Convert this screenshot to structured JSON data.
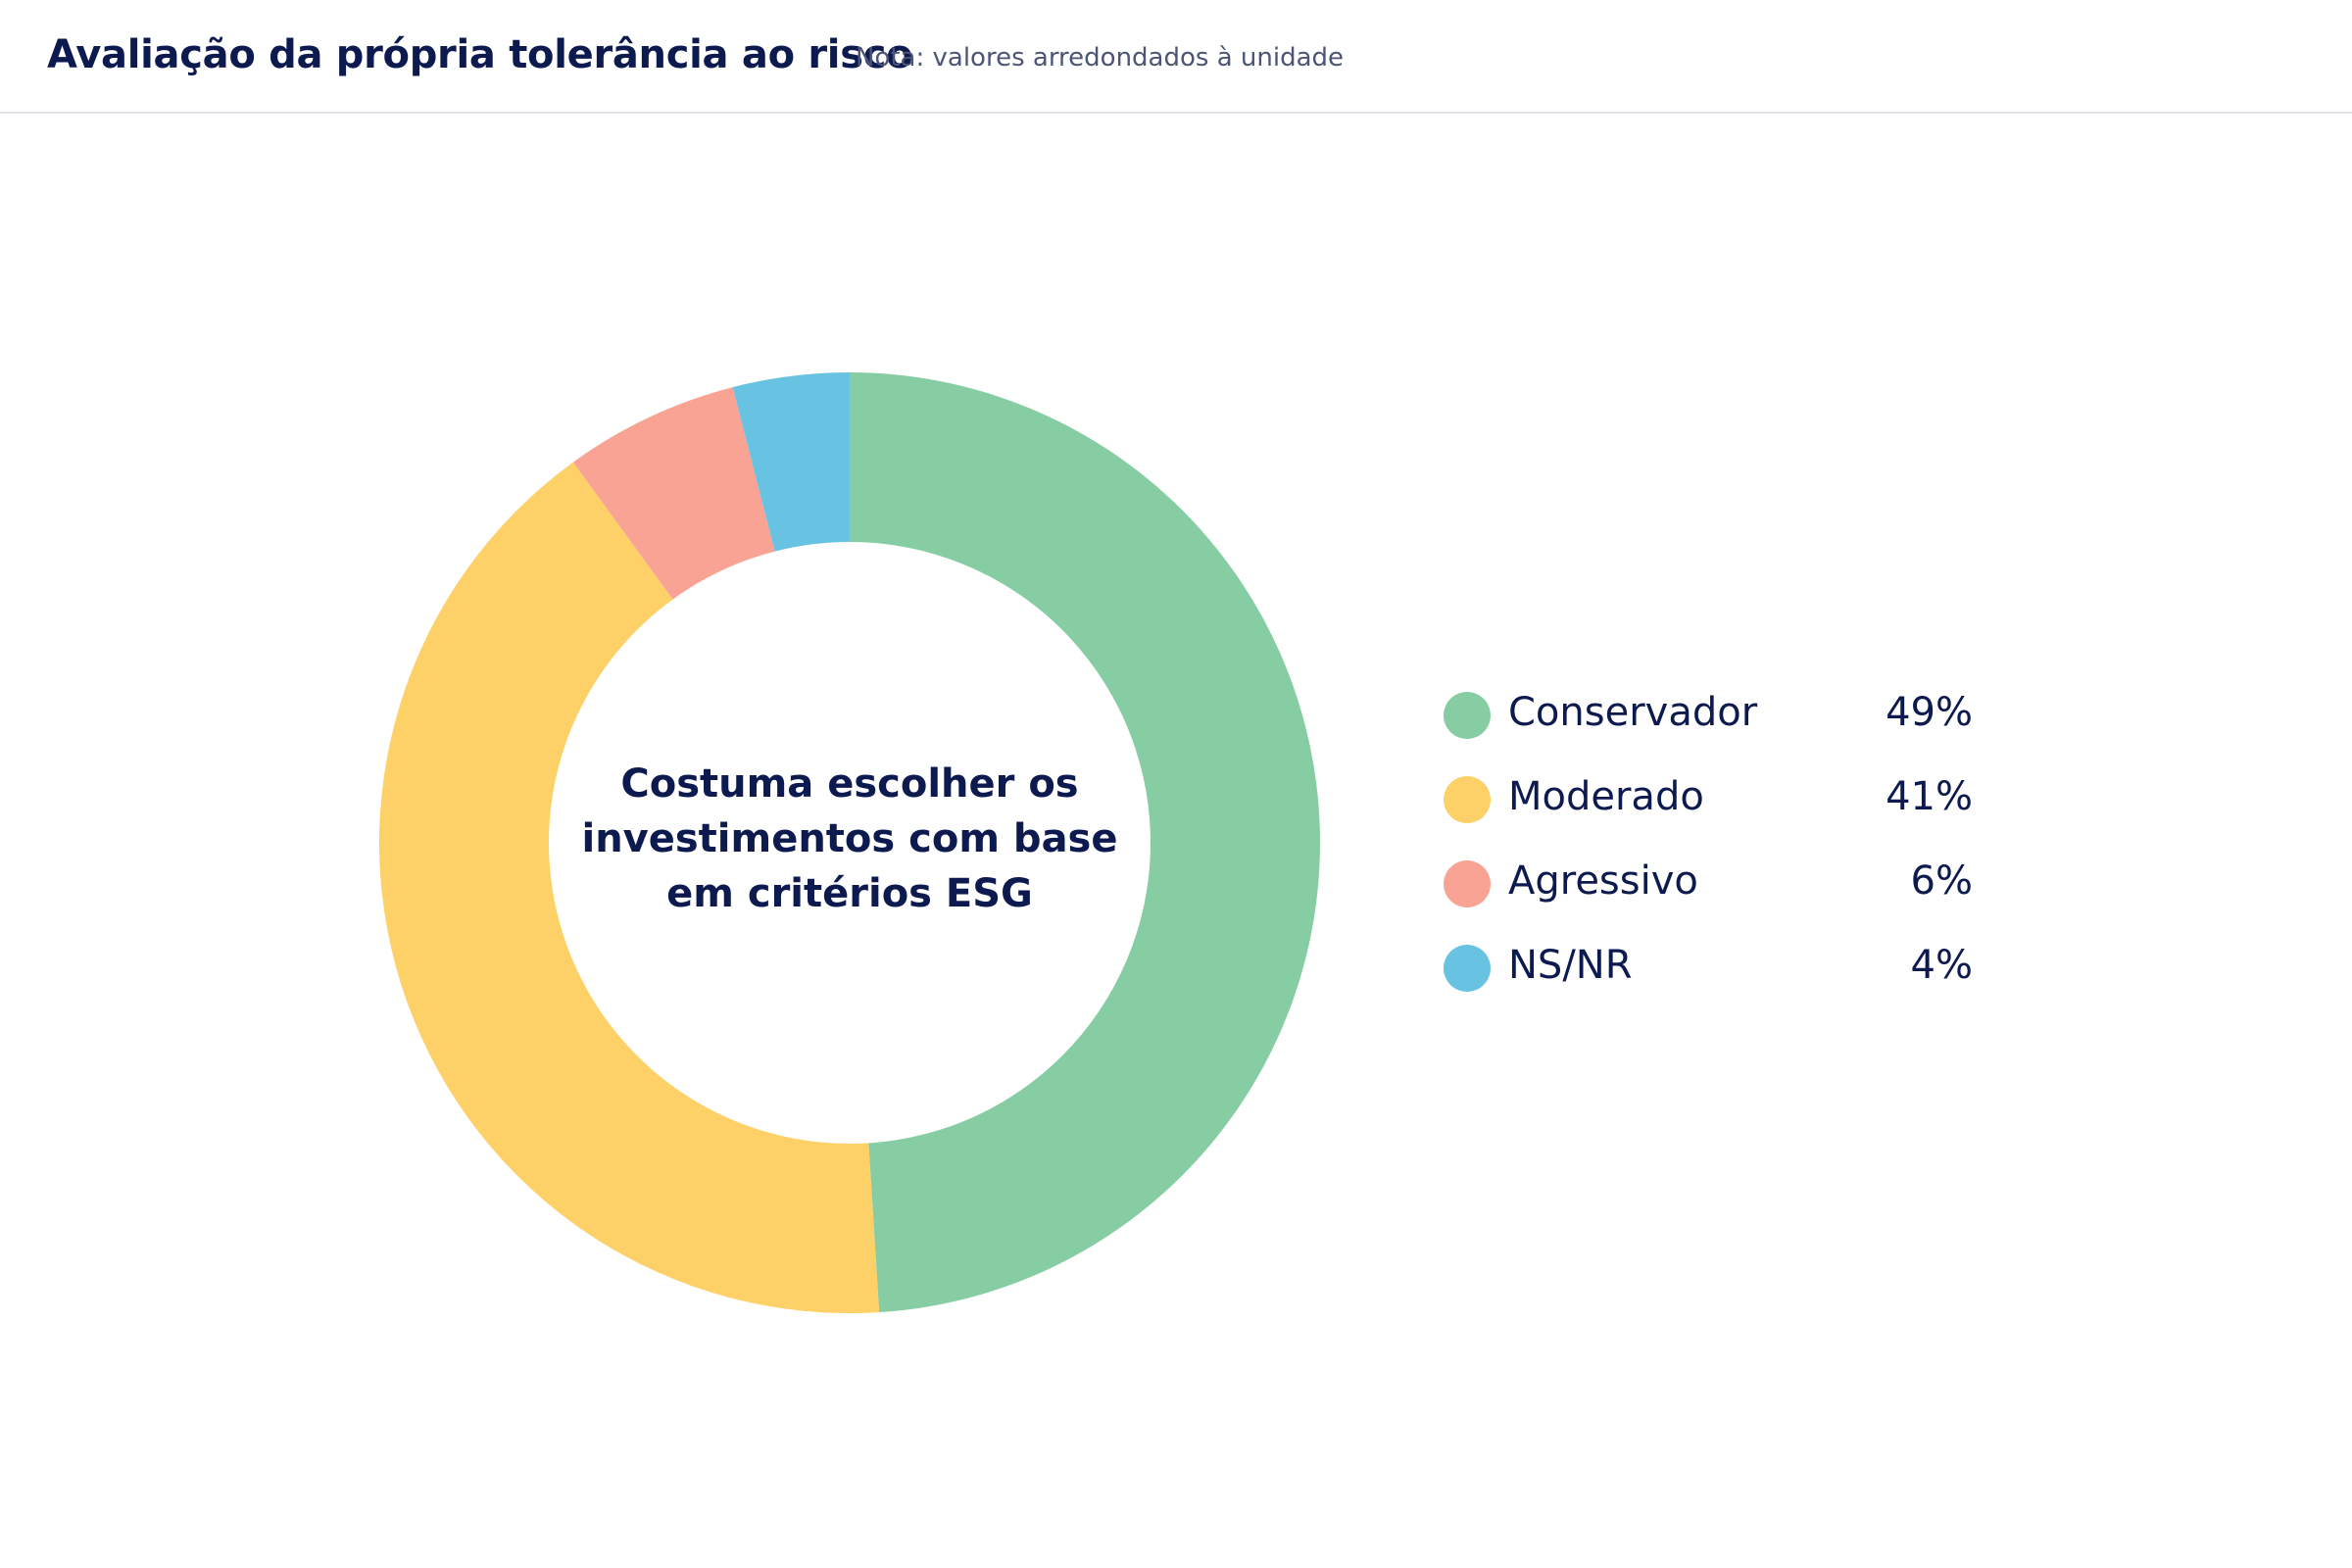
{
  "header": {
    "title": "Avaliação da própria tolerância ao risco",
    "note": "Nota: valores arredondados à unidade"
  },
  "chart_data": {
    "type": "pie",
    "variant": "donut",
    "center_label_lines": [
      "Costuma escolher os",
      "investimentos com base",
      "em critérios ESG"
    ],
    "unit": "%",
    "legend_position": "right",
    "slices": [
      {
        "label": "Conservador",
        "value": 49,
        "display": "49%",
        "color": "#87cda3"
      },
      {
        "label": "Moderado",
        "value": 41,
        "display": "41%",
        "color": "#fdd168"
      },
      {
        "label": "Agressivo",
        "value": 6,
        "display": "6%",
        "color": "#f9a394"
      },
      {
        "label": "NS/NR",
        "value": 4,
        "display": "4%",
        "color": "#68c3e2"
      }
    ]
  }
}
